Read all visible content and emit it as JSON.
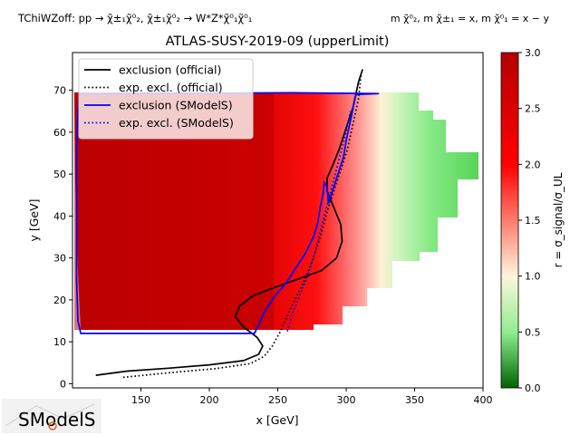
{
  "header": {
    "process": "TChiWZoff: pp → χ̃±₁χ̃⁰₂, χ̃±₁χ̃⁰₂ → W*Z*χ̃⁰₁χ̃⁰₁",
    "masses": "m χ̃⁰₂, m χ̃±₁ = x, m χ̃⁰₁ = x − y"
  },
  "logo": {
    "text": "SModelS"
  },
  "chart_data": {
    "type": "heatmap",
    "title": "ATLAS-SUSY-2019-09 (upperLimit)",
    "xlabel": "x [GeV]",
    "ylabel": "y [GeV]",
    "xlim": [
      100,
      400
    ],
    "ylim": [
      -1,
      79
    ],
    "xticks": [
      150,
      200,
      250,
      300,
      350,
      400
    ],
    "yticks": [
      0,
      10,
      20,
      30,
      40,
      50,
      60,
      70
    ],
    "colorbar": {
      "label": "r = σ_signal/σ_UL",
      "range": [
        0,
        3
      ],
      "ticks": [
        "0.0",
        "0.5",
        "1.0",
        "1.5",
        "2.0",
        "2.5",
        "3.0"
      ],
      "colors": [
        "#006400",
        "#90ee90",
        "#fff5dc",
        "#ff0000",
        "#b40000"
      ]
    },
    "legend_position": "top-left",
    "series": [
      {
        "name": "exclusion (official)",
        "color": "#000000",
        "style": "solid",
        "points": [
          [
            117,
            2
          ],
          [
            140,
            3
          ],
          [
            170,
            3.7
          ],
          [
            200,
            4.5
          ],
          [
            225,
            5.5
          ],
          [
            236,
            7
          ],
          [
            239,
            9
          ],
          [
            235,
            11
          ],
          [
            225,
            13.5
          ],
          [
            219,
            16
          ],
          [
            222,
            18.5
          ],
          [
            232,
            21
          ],
          [
            248,
            23
          ],
          [
            265,
            25
          ],
          [
            282,
            27
          ],
          [
            293,
            30
          ],
          [
            297,
            34
          ],
          [
            296,
            38
          ],
          [
            291,
            42
          ],
          [
            286,
            46
          ],
          [
            286,
            49
          ],
          [
            290,
            52
          ],
          [
            295,
            56
          ],
          [
            300,
            61
          ],
          [
            305,
            66
          ],
          [
            309,
            72
          ],
          [
            312,
            75
          ]
        ]
      },
      {
        "name": "exp. excl. (official)",
        "color": "#000000",
        "style": "dotted",
        "points": [
          [
            137,
            1.5
          ],
          [
            170,
            2.6
          ],
          [
            205,
            3.6
          ],
          [
            230,
            4.8
          ],
          [
            240,
            6.5
          ],
          [
            246,
            9
          ],
          [
            252,
            12.5
          ],
          [
            258,
            17
          ],
          [
            264,
            21
          ],
          [
            270,
            25
          ],
          [
            276,
            30
          ],
          [
            281,
            35
          ],
          [
            286,
            41
          ],
          [
            291,
            46
          ],
          [
            296,
            51
          ],
          [
            301,
            56
          ],
          [
            305,
            62
          ],
          [
            309,
            68
          ],
          [
            311,
            74
          ]
        ]
      },
      {
        "name": "exclusion (SModelS)",
        "color": "#0000ff",
        "style": "solid",
        "points": [
          [
            105,
            69
          ],
          [
            140,
            69.2
          ],
          [
            180,
            69.3
          ],
          [
            260,
            69.4
          ],
          [
            324,
            69.2
          ],
          [
            307,
            69
          ],
          [
            304,
            64
          ],
          [
            300,
            58
          ],
          [
            298,
            54
          ],
          [
            295,
            51
          ],
          [
            292,
            48
          ],
          [
            289,
            45
          ],
          [
            287,
            43
          ],
          [
            286,
            47
          ],
          [
            284,
            48
          ],
          [
            283,
            45
          ],
          [
            281,
            42
          ],
          [
            279,
            38
          ],
          [
            276,
            35
          ],
          [
            270,
            31
          ],
          [
            262,
            27
          ],
          [
            256,
            24
          ],
          [
            248,
            21
          ],
          [
            240,
            17
          ],
          [
            236,
            14
          ],
          [
            233,
            12
          ],
          [
            220,
            12
          ],
          [
            180,
            12
          ],
          [
            140,
            12
          ],
          [
            106,
            12
          ],
          [
            104,
            15
          ],
          [
            103,
            25
          ],
          [
            103,
            40
          ],
          [
            103,
            55
          ],
          [
            104,
            65
          ],
          [
            105,
            69
          ]
        ]
      },
      {
        "name": "exp. excl. (SModelS)",
        "color": "#0000ff",
        "style": "dotted",
        "points": [
          [
            257,
            12.5
          ],
          [
            261,
            17
          ],
          [
            266,
            21
          ],
          [
            271,
            25
          ],
          [
            276,
            30
          ],
          [
            280,
            35
          ],
          [
            284,
            40
          ],
          [
            288,
            45
          ],
          [
            292,
            50
          ],
          [
            296,
            55
          ],
          [
            300,
            60
          ],
          [
            303,
            65
          ]
        ]
      }
    ]
  }
}
